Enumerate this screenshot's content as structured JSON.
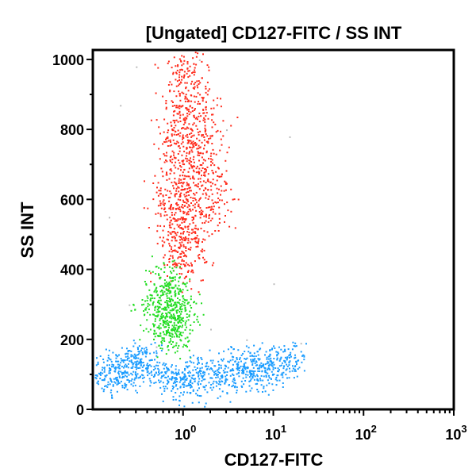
{
  "chart_data": {
    "type": "scatter",
    "title": "[Ungated] CD127-FITC / SS INT",
    "xlabel": "CD127-FITC",
    "ylabel": "SS INT",
    "xscale": "log",
    "xlim": [
      0.1,
      1000
    ],
    "ylim": [
      0,
      1027
    ],
    "xticks": [
      {
        "base": "10",
        "exp": "0",
        "value": 1
      },
      {
        "base": "10",
        "exp": "1",
        "value": 10
      },
      {
        "base": "10",
        "exp": "2",
        "value": 100
      },
      {
        "base": "10",
        "exp": "3",
        "value": 1000
      }
    ],
    "yticks": [
      "0",
      "200",
      "400",
      "600",
      "800",
      "1000"
    ],
    "grid": false,
    "series": [
      {
        "color": "#ff2a1a",
        "spread": [
          0.12,
          40
        ],
        "points": [
          [
            1.0,
            950
          ],
          [
            1.2,
            900
          ],
          [
            0.9,
            870
          ],
          [
            1.3,
            820
          ],
          [
            1.1,
            780
          ],
          [
            1.5,
            750
          ],
          [
            0.8,
            720
          ],
          [
            1.2,
            700
          ],
          [
            1.0,
            660
          ],
          [
            1.4,
            640
          ],
          [
            0.9,
            610
          ],
          [
            1.1,
            580
          ],
          [
            1.6,
            560
          ],
          [
            0.8,
            540
          ],
          [
            1.0,
            510
          ],
          [
            1.3,
            490
          ],
          [
            0.7,
            470
          ],
          [
            1.0,
            440
          ],
          [
            1.2,
            420
          ],
          [
            2.0,
            700
          ],
          [
            2.5,
            600
          ],
          [
            0.6,
            600
          ],
          [
            1.8,
            850
          ],
          [
            1.1,
            990
          ],
          [
            0.75,
            800
          ]
        ]
      },
      {
        "color": "#22dd22",
        "spread": [
          0.1,
          30
        ],
        "points": [
          [
            0.7,
            380
          ],
          [
            0.6,
            350
          ],
          [
            0.8,
            330
          ],
          [
            0.7,
            300
          ],
          [
            0.5,
            280
          ],
          [
            0.9,
            270
          ],
          [
            0.65,
            250
          ],
          [
            0.75,
            230
          ],
          [
            1.0,
            300
          ],
          [
            0.45,
            320
          ],
          [
            0.85,
            210
          ],
          [
            0.55,
            220
          ]
        ]
      },
      {
        "color": "#1a9cff",
        "spread": [
          0.12,
          25
        ],
        "points": [
          [
            0.12,
            100
          ],
          [
            0.15,
            120
          ],
          [
            0.2,
            110
          ],
          [
            0.25,
            140
          ],
          [
            0.3,
            130
          ],
          [
            0.35,
            160
          ],
          [
            0.18,
            85
          ],
          [
            0.4,
            120
          ],
          [
            0.6,
            100
          ],
          [
            0.8,
            80
          ],
          [
            1.0,
            95
          ],
          [
            1.5,
            110
          ],
          [
            2,
            120
          ],
          [
            3,
            100
          ],
          [
            4,
            130
          ],
          [
            5,
            110
          ],
          [
            6,
            140
          ],
          [
            8,
            120
          ],
          [
            10,
            130
          ],
          [
            12,
            150
          ],
          [
            15,
            140
          ],
          [
            1.2,
            70
          ],
          [
            2.5,
            80
          ],
          [
            7,
            90
          ]
        ]
      },
      {
        "color": "#bbbbbb",
        "spread": [
          0.05,
          10
        ],
        "points": [
          [
            0.3,
            980
          ],
          [
            0.2,
            870
          ],
          [
            3,
            800
          ],
          [
            15,
            780
          ],
          [
            0.15,
            550
          ],
          [
            2,
            230
          ],
          [
            5,
            200
          ],
          [
            20,
            190
          ],
          [
            0.5,
            180
          ],
          [
            10,
            360
          ],
          [
            0.25,
            300
          ],
          [
            1.5,
            1000
          ]
        ]
      }
    ]
  }
}
